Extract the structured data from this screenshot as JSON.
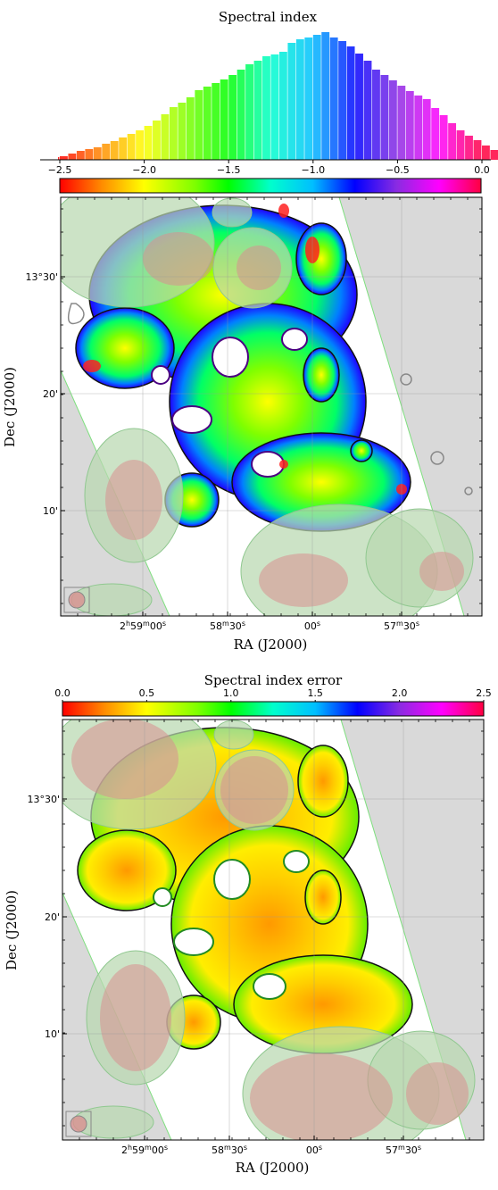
{
  "chart_data": [
    {
      "type": "bar",
      "title": "Spectral index",
      "xlabel": "",
      "ylabel": "",
      "xlim": [
        -2.5,
        0.0
      ],
      "x_ticks": [
        "−2.5",
        "−2.0",
        "−1.5",
        "−1.0",
        "−0.5",
        "0.0"
      ],
      "bin_start": -2.55,
      "bin_width": 0.05,
      "values": [
        3,
        4,
        7,
        10,
        12,
        14,
        18,
        21,
        25,
        29,
        33,
        38,
        44,
        51,
        59,
        64,
        70,
        78,
        82,
        86,
        90,
        95,
        101,
        107,
        111,
        116,
        118,
        121,
        131,
        135,
        137,
        140,
        143,
        137,
        133,
        127,
        119,
        111,
        101,
        95,
        89,
        83,
        77,
        72,
        68,
        58,
        50,
        41,
        33,
        27,
        22,
        16,
        11,
        8,
        6,
        4,
        3,
        2,
        1
      ],
      "colorbar": {
        "colormap": "rainbow",
        "colors": [
          "#ff0000",
          "#ff8c00",
          "#ffff00",
          "#7fff00",
          "#00ff00",
          "#00ffcc",
          "#00bfff",
          "#0000ff",
          "#8a2be2",
          "#ff00ff",
          "#ff0040"
        ]
      }
    },
    {
      "type": "heatmap",
      "title": "",
      "xlabel": "RA (J2000)",
      "ylabel": "Dec (J2000)",
      "x_ticks": [
        "2h59m00s",
        "58m30s",
        "00s",
        "57m30s"
      ],
      "y_ticks": [
        "13°30'",
        "20'",
        "10'"
      ],
      "grid": true,
      "colormap": "rainbow"
    },
    {
      "type": "heatmap",
      "title": "Spectral index error",
      "xlabel": "RA (J2000)",
      "ylabel": "Dec (J2000)",
      "x_ticks": [
        "2h59m00s",
        "58m30s",
        "00s",
        "57m30s"
      ],
      "y_ticks": [
        "13°30'",
        "20'",
        "10'"
      ],
      "grid": true,
      "colorbar": {
        "ticks": [
          "0.0",
          "0.5",
          "1.0",
          "1.5",
          "2.0",
          "2.5"
        ],
        "range": [
          0,
          2.5
        ],
        "colormap": "rainbow"
      }
    }
  ],
  "ui": {
    "hist_title": "Spectral index",
    "err_title": "Spectral index error",
    "top_xlabel": "RA (J2000)",
    "top_ylabel": "Dec (J2000)",
    "bot_xlabel": "RA (J2000)",
    "bot_ylabel": "Dec (J2000)",
    "ra_ticks": [
      {
        "h": "2",
        "hs": "h",
        "m": "59",
        "ms": "m",
        "s": "00",
        "ss": "s"
      },
      {
        "h": "",
        "hs": "",
        "m": "58",
        "ms": "m",
        "s": "30",
        "ss": "s"
      },
      {
        "h": "",
        "hs": "",
        "m": "",
        "ms": "",
        "s": "00",
        "ss": "s"
      },
      {
        "h": "",
        "hs": "",
        "m": "57",
        "ms": "m",
        "s": "30",
        "ss": "s"
      }
    ],
    "dec_ticks": [
      "13°30'",
      "20'",
      "10'"
    ],
    "hist_ticks": [
      "−2.5",
      "−2.0",
      "−1.5",
      "−1.0",
      "−0.5",
      "0.0"
    ],
    "err_ticks": [
      "0.0",
      "0.5",
      "1.0",
      "1.5",
      "2.0",
      "2.5"
    ]
  }
}
